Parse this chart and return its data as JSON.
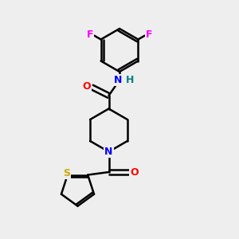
{
  "background_color": "#eeeeee",
  "bond_color": "#000000",
  "atom_colors": {
    "F": "#ff00ff",
    "O": "#ff0000",
    "N": "#0000ff",
    "S": "#ccaa00",
    "H": "#008080",
    "C": "#000000"
  },
  "figsize": [
    3.0,
    3.0
  ],
  "dpi": 100,
  "xlim": [
    0,
    10
  ],
  "ylim": [
    0,
    10
  ]
}
